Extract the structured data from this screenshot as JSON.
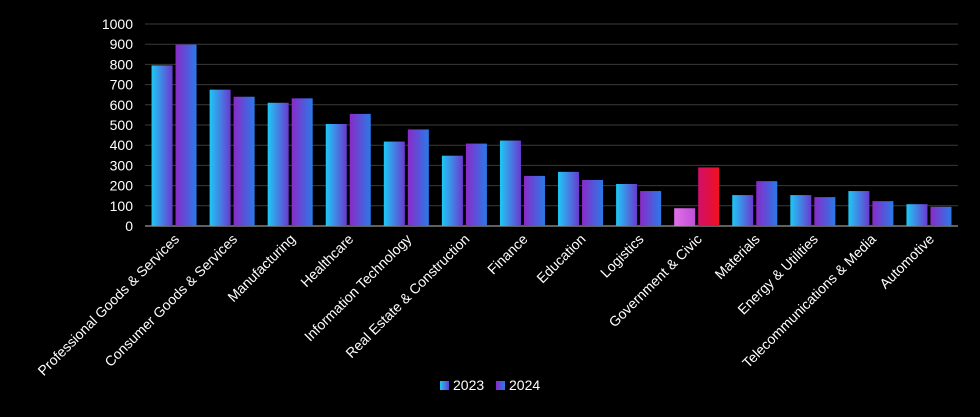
{
  "chart_data": {
    "type": "bar",
    "title": "",
    "xlabel": "",
    "ylabel": "",
    "ylim": [
      0,
      1000
    ],
    "yticks": [
      0,
      100,
      200,
      300,
      400,
      500,
      600,
      700,
      800,
      900,
      1000
    ],
    "grid": true,
    "legend_position": "bottom-center",
    "categories": [
      "Professional Goods & Services",
      "Consumer Goods & Services",
      "Manufacturing",
      "Healthcare",
      "Information Technology",
      "Real Estate & Construction",
      "Finance",
      "Education",
      "Logistics",
      "Government & Civic",
      "Materials",
      "Energy & Utilities",
      "Telecommunications & Media",
      "Automotive"
    ],
    "series": [
      {
        "name": "2023",
        "color": "#1e88e5",
        "values": [
          795,
          675,
          610,
          505,
          418,
          348,
          423,
          268,
          208,
          88,
          153,
          153,
          173,
          108
        ]
      },
      {
        "name": "2024",
        "color": "#7b2fbe",
        "values": [
          898,
          640,
          632,
          555,
          478,
          408,
          248,
          228,
          173,
          290,
          222,
          143,
          123,
          95
        ]
      }
    ],
    "highlight": {
      "category": "Government & Civic",
      "colors": [
        "#d65cd6",
        "#e0102e"
      ]
    }
  }
}
